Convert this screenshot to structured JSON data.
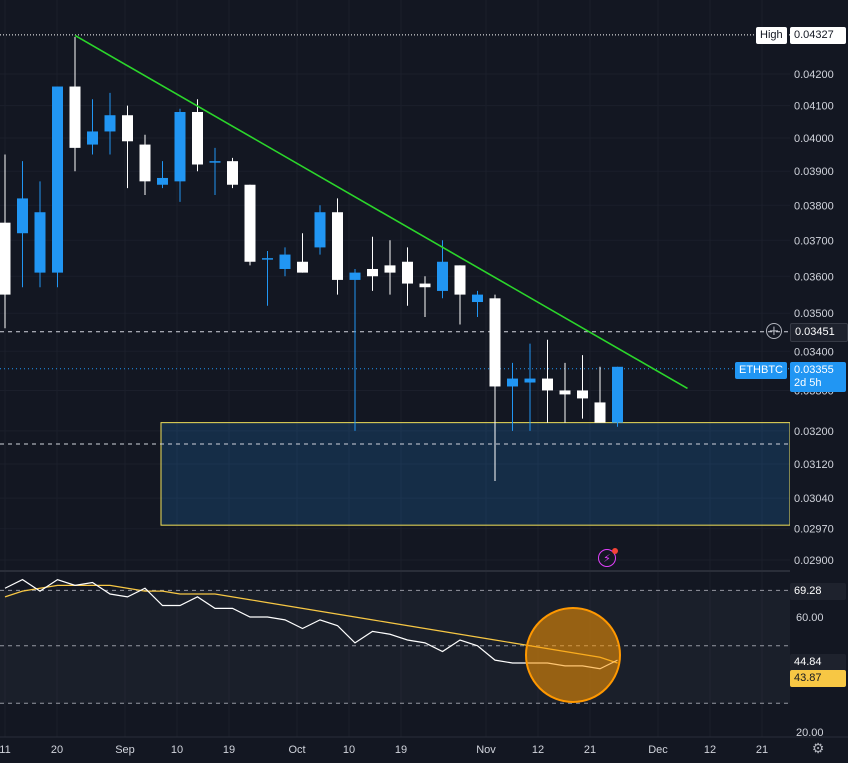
{
  "chart_data": [
    {
      "type": "candlestick",
      "symbol": "ETHBTC",
      "countdown": "2d 5h",
      "last_price": "0.03355",
      "high_label": "High",
      "high_value": "0.04327",
      "horizontal_line_value": "0.03451",
      "y_ticks": [
        "0.04200",
        "0.04100",
        "0.04000",
        "0.03900",
        "0.03800",
        "0.03700",
        "0.03600",
        "0.03500",
        "0.03400",
        "0.03300",
        "0.03200",
        "0.03120",
        "0.03040",
        "0.02970",
        "0.02900"
      ],
      "x_ticks": [
        "11",
        "20",
        "Sep",
        "10",
        "19",
        "Oct",
        "10",
        "19",
        "Nov",
        "12",
        "21",
        "Dec",
        "12",
        "21"
      ],
      "candles": [
        {
          "o": 0.0375,
          "h": 0.0395,
          "l": 0.0346,
          "c": 0.0355
        },
        {
          "o": 0.0372,
          "h": 0.0393,
          "l": 0.0357,
          "c": 0.0382
        },
        {
          "o": 0.0361,
          "h": 0.0387,
          "l": 0.0357,
          "c": 0.0378
        },
        {
          "o": 0.0361,
          "h": 0.0416,
          "l": 0.0357,
          "c": 0.0416
        },
        {
          "o": 0.0416,
          "h": 0.0432,
          "l": 0.039,
          "c": 0.0397
        },
        {
          "o": 0.0398,
          "h": 0.0412,
          "l": 0.0395,
          "c": 0.0402
        },
        {
          "o": 0.0402,
          "h": 0.0414,
          "l": 0.0395,
          "c": 0.0407
        },
        {
          "o": 0.0407,
          "h": 0.041,
          "l": 0.0385,
          "c": 0.0399
        },
        {
          "o": 0.0398,
          "h": 0.0401,
          "l": 0.0383,
          "c": 0.0387
        },
        {
          "o": 0.0386,
          "h": 0.0393,
          "l": 0.0385,
          "c": 0.0388
        },
        {
          "o": 0.0387,
          "h": 0.0409,
          "l": 0.0381,
          "c": 0.0408
        },
        {
          "o": 0.0408,
          "h": 0.0412,
          "l": 0.039,
          "c": 0.0392
        },
        {
          "o": 0.0393,
          "h": 0.0397,
          "l": 0.0383,
          "c": 0.0393
        },
        {
          "o": 0.0393,
          "h": 0.0394,
          "l": 0.0385,
          "c": 0.0386
        },
        {
          "o": 0.0386,
          "h": 0.0386,
          "l": 0.0363,
          "c": 0.0364
        },
        {
          "o": 0.0365,
          "h": 0.0367,
          "l": 0.0352,
          "c": 0.0365
        },
        {
          "o": 0.0362,
          "h": 0.0368,
          "l": 0.036,
          "c": 0.0366
        },
        {
          "o": 0.0364,
          "h": 0.0372,
          "l": 0.0361,
          "c": 0.0361
        },
        {
          "o": 0.0368,
          "h": 0.038,
          "l": 0.0366,
          "c": 0.0378
        },
        {
          "o": 0.0378,
          "h": 0.0382,
          "l": 0.0355,
          "c": 0.0359
        },
        {
          "o": 0.0359,
          "h": 0.0362,
          "l": 0.032,
          "c": 0.0361
        },
        {
          "o": 0.0362,
          "h": 0.0371,
          "l": 0.0356,
          "c": 0.036
        },
        {
          "o": 0.0363,
          "h": 0.037,
          "l": 0.0355,
          "c": 0.0361
        },
        {
          "o": 0.0364,
          "h": 0.0368,
          "l": 0.0352,
          "c": 0.0358
        },
        {
          "o": 0.0358,
          "h": 0.036,
          "l": 0.0349,
          "c": 0.0357
        },
        {
          "o": 0.0356,
          "h": 0.037,
          "l": 0.0354,
          "c": 0.0364
        },
        {
          "o": 0.0363,
          "h": 0.0363,
          "l": 0.0347,
          "c": 0.0355
        },
        {
          "o": 0.0353,
          "h": 0.0356,
          "l": 0.0349,
          "c": 0.0355
        },
        {
          "o": 0.0354,
          "h": 0.0355,
          "l": 0.0308,
          "c": 0.0331
        },
        {
          "o": 0.0331,
          "h": 0.0337,
          "l": 0.032,
          "c": 0.0333
        },
        {
          "o": 0.0332,
          "h": 0.0342,
          "l": 0.032,
          "c": 0.0333
        },
        {
          "o": 0.0333,
          "h": 0.0343,
          "l": 0.0322,
          "c": 0.033
        },
        {
          "o": 0.033,
          "h": 0.0337,
          "l": 0.0322,
          "c": 0.0329
        },
        {
          "o": 0.033,
          "h": 0.0339,
          "l": 0.0323,
          "c": 0.0328
        },
        {
          "o": 0.0327,
          "h": 0.0336,
          "l": 0.0322,
          "c": 0.0322
        },
        {
          "o": 0.0322,
          "h": 0.0336,
          "l": 0.0321,
          "c": 0.0336
        }
      ],
      "trendline": {
        "from": {
          "index": 4,
          "price": 0.04325
        },
        "to": {
          "index": 39,
          "price": 0.03305
        },
        "color": "#2bd62b"
      },
      "zone": {
        "top": 0.0322,
        "bottom": 0.02978,
        "color": "#f0e05a"
      },
      "reference_lines": [
        0.03451,
        0.03168
      ],
      "colors": {
        "up": "#2196f3",
        "down": "#ffffff",
        "background": "#131722"
      }
    },
    {
      "type": "line",
      "name": "RSI",
      "y_ticks": [
        "60.00",
        "20.00"
      ],
      "rsi_value": "44.84",
      "ma_value": "43.87",
      "overbought_value": "69.28",
      "reference_levels": [
        69.28,
        50,
        30
      ],
      "rsi": [
        70,
        73,
        69,
        73,
        71,
        72,
        68,
        67,
        70,
        64,
        64,
        67,
        63,
        63,
        60,
        60,
        59,
        56,
        59,
        57,
        51,
        55,
        54,
        52,
        51,
        48,
        52,
        50,
        45,
        44,
        44,
        44,
        43,
        43,
        42,
        45
      ],
      "ma": [
        67,
        69,
        70,
        71,
        71,
        71,
        71,
        70,
        69,
        69,
        68,
        68,
        68,
        67,
        66,
        65,
        64,
        63,
        62,
        61,
        60,
        59,
        58,
        57,
        56,
        55,
        54,
        53,
        52,
        51,
        50,
        49,
        48,
        47,
        46,
        44
      ],
      "colors": {
        "rsi": "#ffffff",
        "ma": "#f7c744",
        "highlight": "#ff9800"
      }
    }
  ]
}
